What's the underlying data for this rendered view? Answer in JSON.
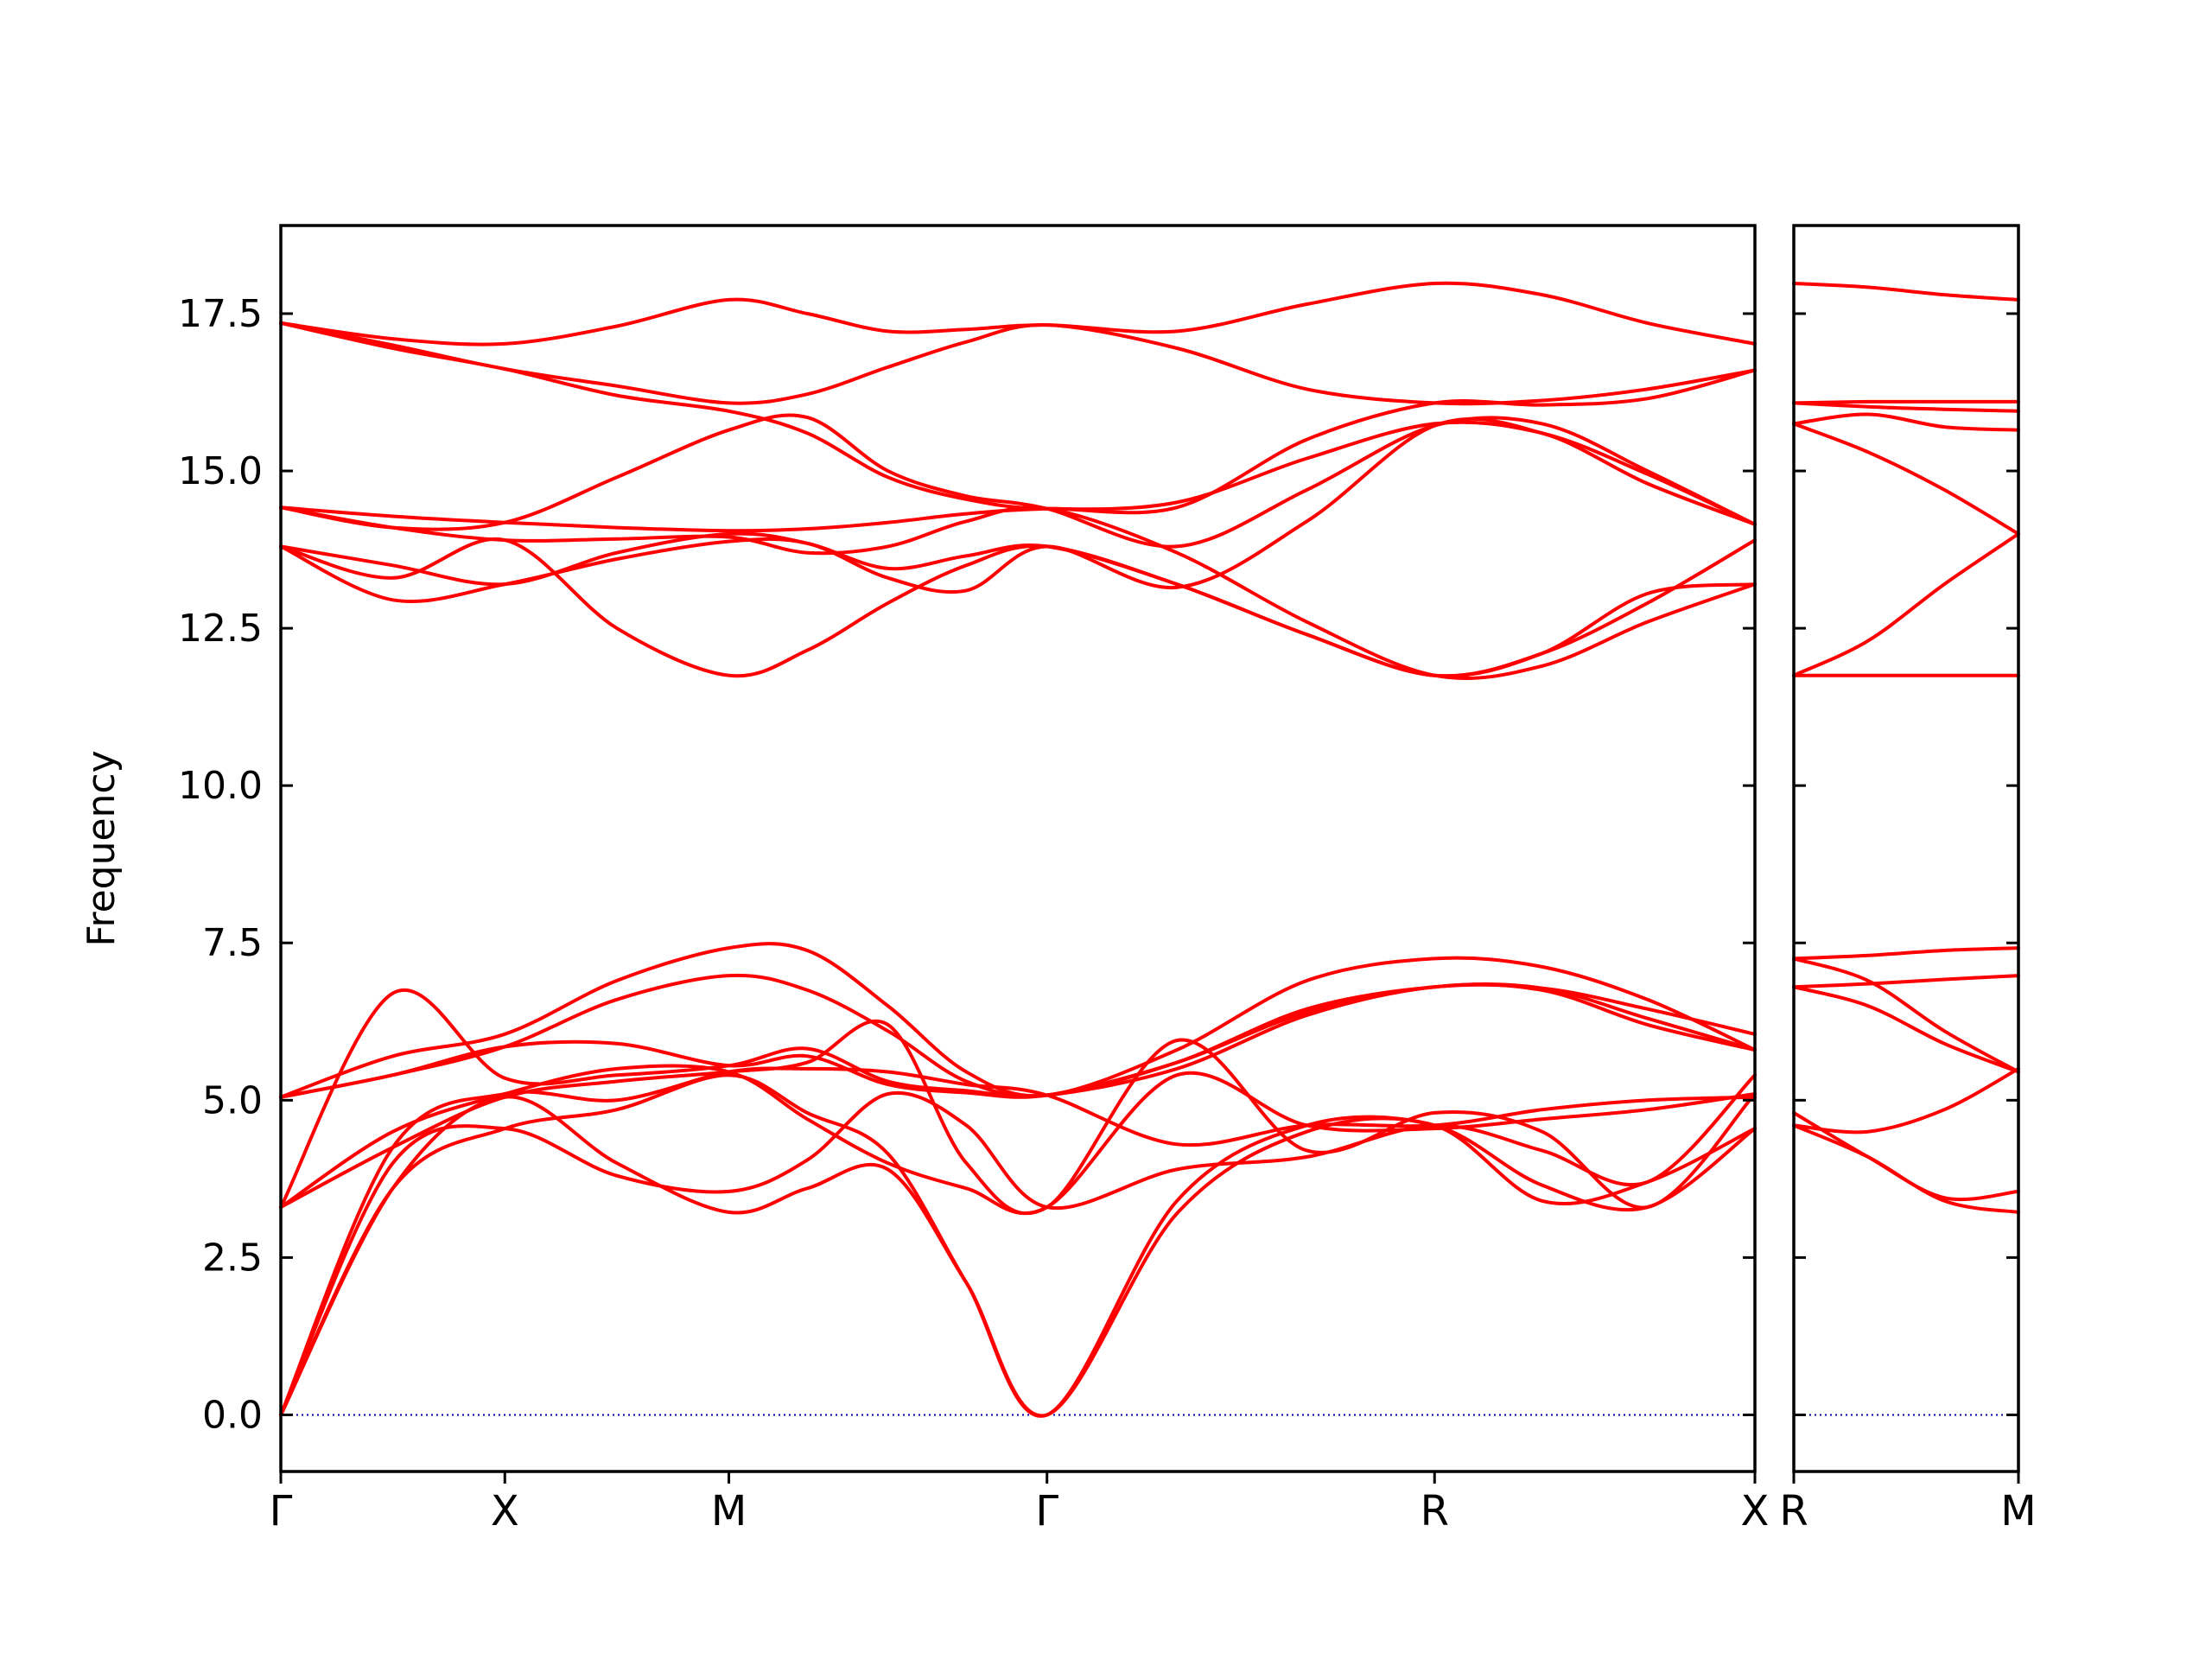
{
  "chart_data": {
    "type": "line",
    "title": "",
    "xlabel": "",
    "ylabel": "Frequency",
    "ylim": [
      -0.9,
      18.9
    ],
    "yticks": [
      0.0,
      2.5,
      5.0,
      7.5,
      10.0,
      12.5,
      15.0,
      17.5
    ],
    "ytick_labels": [
      "0.0",
      "2.5",
      "5.0",
      "7.5",
      "10.0",
      "12.5",
      "15.0",
      "17.5"
    ],
    "grid": false,
    "legend": "none",
    "line_color": "#ff0000",
    "zero_line_color": "#0000aa",
    "panels": [
      {
        "name": "main",
        "xlim": [
          0,
          6.58
        ],
        "ticks": [
          {
            "x": 0,
            "label": "Γ"
          },
          {
            "x": 1,
            "label": "X"
          },
          {
            "x": 2,
            "label": "M"
          },
          {
            "x": 3.42,
            "label": "Γ"
          },
          {
            "x": 5.15,
            "label": "R"
          },
          {
            "x": 6.58,
            "label": "X"
          }
        ],
        "series": [
          {
            "x": [
              0,
              0.5,
              1,
              1.5,
              2,
              2.35,
              2.71,
              3.06,
              3.42,
              4.0,
              4.58,
              5.15,
              5.63,
              6.1,
              6.58
            ],
            "values": [
              17.35,
              17.1,
              17.02,
              17.3,
              17.72,
              17.5,
              17.22,
              17.25,
              17.32,
              17.22,
              17.65,
              17.98,
              17.8,
              17.35,
              17.02
            ]
          },
          {
            "x": [
              0,
              0.5,
              1,
              1.5,
              2,
              2.35,
              2.71,
              3.06,
              3.42,
              4.0,
              4.58,
              5.15,
              5.63,
              6.1,
              6.58
            ],
            "values": [
              17.35,
              17.0,
              16.62,
              16.35,
              16.08,
              16.22,
              16.65,
              17.05,
              17.32,
              16.95,
              16.3,
              16.08,
              16.12,
              16.3,
              16.6
            ]
          },
          {
            "x": [
              0,
              0.5,
              1,
              1.5,
              2,
              2.35,
              2.71,
              3.06,
              3.42,
              4.0,
              4.58,
              5.15,
              5.63,
              6.1,
              6.58
            ],
            "values": [
              17.35,
              16.95,
              16.62,
              16.2,
              15.95,
              15.6,
              14.9,
              14.55,
              14.4,
              14.5,
              15.2,
              15.75,
              15.6,
              14.95,
              14.15
            ]
          },
          {
            "x": [
              0,
              0.5,
              1,
              1.5,
              2,
              2.35,
              2.71,
              3.06,
              3.42,
              4.0,
              4.58,
              5.15,
              5.63,
              6.1,
              6.58
            ],
            "values": [
              14.42,
              14.28,
              14.18,
              14.1,
              14.05,
              14.08,
              14.18,
              14.32,
              14.4,
              14.42,
              15.5,
              16.08,
              16.05,
              16.15,
              16.6
            ]
          },
          {
            "x": [
              0,
              0.5,
              1,
              1.5,
              2,
              2.35,
              2.71,
              3.06,
              3.42,
              4.0,
              4.58,
              5.15,
              5.63,
              6.1,
              6.58
            ],
            "values": [
              14.42,
              14.1,
              14.18,
              14.9,
              15.65,
              15.85,
              15.0,
              14.6,
              14.4,
              13.8,
              14.7,
              15.72,
              15.75,
              15.0,
              14.15
            ]
          },
          {
            "x": [
              0,
              0.5,
              1,
              1.5,
              2,
              2.35,
              2.71,
              3.06,
              3.42,
              4.0,
              4.58,
              5.15,
              5.63,
              6.1,
              6.58
            ],
            "values": [
              14.42,
              14.1,
              13.9,
              13.92,
              13.95,
              13.7,
              13.8,
              14.2,
              14.4,
              13.7,
              12.6,
              11.75,
              11.9,
              12.6,
              13.2
            ]
          },
          {
            "x": [
              0,
              0.5,
              1,
              1.5,
              2,
              2.35,
              2.71,
              3.06,
              3.42,
              4.0,
              4.58,
              5.15,
              5.63,
              6.1,
              6.58
            ],
            "values": [
              13.8,
              13.5,
              13.2,
              13.7,
              14.0,
              13.85,
              13.45,
              13.65,
              13.8,
              13.2,
              12.4,
              11.75,
              12.1,
              12.9,
              13.9
            ]
          },
          {
            "x": [
              0,
              0.5,
              1,
              1.5,
              2,
              2.35,
              2.71,
              3.06,
              3.42,
              4.0,
              4.58,
              5.15,
              5.63,
              6.1,
              6.58
            ],
            "values": [
              13.8,
              12.95,
              13.2,
              13.6,
              13.88,
              13.85,
              13.3,
              13.1,
              13.8,
              13.15,
              14.2,
              15.72,
              15.6,
              14.8,
              14.15
            ]
          },
          {
            "x": [
              0,
              0.5,
              1,
              1.5,
              2,
              2.35,
              2.71,
              3.06,
              3.42,
              4.0,
              4.58,
              5.15,
              5.63,
              6.1,
              6.58
            ],
            "values": [
              13.8,
              13.3,
              13.9,
              12.5,
              11.75,
              12.15,
              12.9,
              13.5,
              13.8,
              13.2,
              12.4,
              11.75,
              12.1,
              13.05,
              13.2
            ]
          },
          {
            "x": [
              0,
              0.5,
              1,
              1.5,
              2,
              2.35,
              2.71,
              3.06,
              3.42,
              4.0,
              4.58,
              5.15,
              5.63,
              6.1,
              6.58
            ],
            "values": [
              5.05,
              5.7,
              6.05,
              6.9,
              7.42,
              7.38,
              6.5,
              5.45,
              5.08,
              5.8,
              6.9,
              7.25,
              7.12,
              6.6,
              5.8
            ]
          },
          {
            "x": [
              0,
              0.5,
              1,
              1.5,
              2,
              2.35,
              2.71,
              3.06,
              3.42,
              4.0,
              4.58,
              5.15,
              5.63,
              6.1,
              6.58
            ],
            "values": [
              5.05,
              5.4,
              5.85,
              6.6,
              6.98,
              6.75,
              6.1,
              5.3,
              5.08,
              5.6,
              6.45,
              6.8,
              6.78,
              6.45,
              6.05
            ]
          },
          {
            "x": [
              0,
              0.5,
              1,
              1.5,
              2,
              2.35,
              2.71,
              3.06,
              3.42,
              4.0,
              4.58,
              5.15,
              5.63,
              6.1,
              6.58
            ],
            "values": [
              5.05,
              5.4,
              5.85,
              5.9,
              5.55,
              5.7,
              5.25,
              5.12,
              5.08,
              5.6,
              6.4,
              6.8,
              6.78,
              6.3,
              5.8
            ]
          },
          {
            "x": [
              0,
              0.5,
              1,
              1.5,
              2,
              2.35,
              2.71,
              3.06,
              3.42,
              4.0,
              4.58,
              5.15,
              5.63,
              6.1,
              6.58
            ],
            "values": [
              3.3,
              6.7,
              5.35,
              5.4,
              5.55,
              5.82,
              5.3,
              5.15,
              5.08,
              5.5,
              6.35,
              6.8,
              6.75,
              6.2,
              5.8
            ]
          },
          {
            "x": [
              0,
              0.5,
              1,
              1.5,
              2,
              2.35,
              2.71,
              3.06,
              3.42,
              4.0,
              4.58,
              5.15,
              5.63,
              6.1,
              6.58
            ],
            "values": [
              3.3,
              4.25,
              5.05,
              5.3,
              5.45,
              5.6,
              6.2,
              4.0,
              3.3,
              5.95,
              4.2,
              4.8,
              4.5,
              3.3,
              5.1
            ]
          },
          {
            "x": [
              0,
              0.5,
              1,
              1.5,
              2,
              2.35,
              2.71,
              3.06,
              3.42,
              4.0,
              4.58,
              5.15,
              5.63,
              6.1,
              6.58
            ],
            "values": [
              3.3,
              4.5,
              5.1,
              5.5,
              5.45,
              4.7,
              4.0,
              3.6,
              3.3,
              5.4,
              4.6,
              4.55,
              4.7,
              4.85,
              5.1
            ]
          },
          {
            "x": [
              0,
              0.5,
              1,
              1.5,
              2,
              2.35,
              2.71,
              3.06,
              3.42,
              4.0,
              4.58,
              5.15,
              5.63,
              6.1,
              6.58
            ],
            "values": [
              0.0,
              4.25,
              5.1,
              5.0,
              5.45,
              5.5,
              5.45,
              5.25,
              5.08,
              4.3,
              4.6,
              4.6,
              4.85,
              5.0,
              5.05
            ]
          },
          {
            "x": [
              0,
              0.5,
              1,
              1.5,
              2,
              2.35,
              2.71,
              3.06,
              3.42,
              4.0,
              4.58,
              5.15,
              5.63,
              6.1,
              6.58
            ],
            "values": [
              0.0,
              4.0,
              4.55,
              3.8,
              3.55,
              4.05,
              5.1,
              4.6,
              3.3,
              3.9,
              4.1,
              4.6,
              4.2,
              3.7,
              5.4
            ]
          },
          {
            "x": [
              0,
              0.5,
              1,
              1.5,
              2,
              2.35,
              2.71,
              3.06,
              3.42,
              4.0,
              4.58,
              5.15,
              5.63,
              6.1,
              6.58
            ],
            "values": [
              0.0,
              3.6,
              4.55,
              4.85,
              5.4,
              4.8,
              4.15,
              2.1,
              0.0,
              3.4,
              4.6,
              4.6,
              3.65,
              3.3,
              4.55
            ]
          },
          {
            "x": [
              0,
              0.5,
              1,
              1.5,
              2,
              2.35,
              2.71,
              3.06,
              3.42,
              4.0,
              4.58,
              5.15,
              5.63,
              6.1,
              6.58
            ],
            "values": [
              0.0,
              3.6,
              5.05,
              4.0,
              3.22,
              3.6,
              3.9,
              2.1,
              0.0,
              3.2,
              4.5,
              4.6,
              3.4,
              3.7,
              4.55
            ]
          }
        ]
      },
      {
        "name": "right",
        "xlim": [
          0,
          1
        ],
        "ticks": [
          {
            "x": 0,
            "label": "R"
          },
          {
            "x": 1,
            "label": "M"
          }
        ],
        "series": [
          {
            "x": [
              0,
              0.33,
              0.67,
              1
            ],
            "values": [
              17.98,
              17.92,
              17.8,
              17.72
            ]
          },
          {
            "x": [
              0,
              0.33,
              0.67,
              1
            ],
            "values": [
              16.08,
              16.1,
              16.1,
              16.1
            ]
          },
          {
            "x": [
              0,
              0.33,
              0.67,
              1
            ],
            "values": [
              16.08,
              16.02,
              15.98,
              15.95
            ]
          },
          {
            "x": [
              0,
              0.33,
              0.67,
              1
            ],
            "values": [
              15.75,
              15.9,
              15.7,
              15.65
            ]
          },
          {
            "x": [
              0,
              0.33,
              0.67,
              1
            ],
            "values": [
              15.75,
              15.3,
              14.7,
              14.0
            ]
          },
          {
            "x": [
              0,
              0.33,
              0.67,
              1
            ],
            "values": [
              11.75,
              12.3,
              13.2,
              14.0
            ]
          },
          {
            "x": [
              0,
              0.33,
              0.67,
              1
            ],
            "values": [
              11.75,
              11.75,
              11.75,
              11.75
            ]
          },
          {
            "x": [
              0,
              0.33,
              0.67,
              1
            ],
            "values": [
              7.25,
              7.3,
              7.38,
              7.42
            ]
          },
          {
            "x": [
              0,
              0.33,
              0.67,
              1
            ],
            "values": [
              6.8,
              6.85,
              6.92,
              6.98
            ]
          },
          {
            "x": [
              0,
              0.33,
              0.67,
              1
            ],
            "values": [
              7.25,
              6.9,
              6.1,
              5.45
            ]
          },
          {
            "x": [
              0,
              0.33,
              0.67,
              1
            ],
            "values": [
              6.8,
              6.5,
              5.9,
              5.45
            ]
          },
          {
            "x": [
              0,
              0.33,
              0.67,
              1
            ],
            "values": [
              4.6,
              4.5,
              4.85,
              5.5
            ]
          },
          {
            "x": [
              0,
              0.33,
              0.67,
              1
            ],
            "values": [
              4.8,
              4.1,
              3.45,
              3.55
            ]
          },
          {
            "x": [
              0,
              0.33,
              0.67,
              1
            ],
            "values": [
              4.6,
              4.1,
              3.4,
              3.22
            ]
          }
        ]
      }
    ]
  }
}
